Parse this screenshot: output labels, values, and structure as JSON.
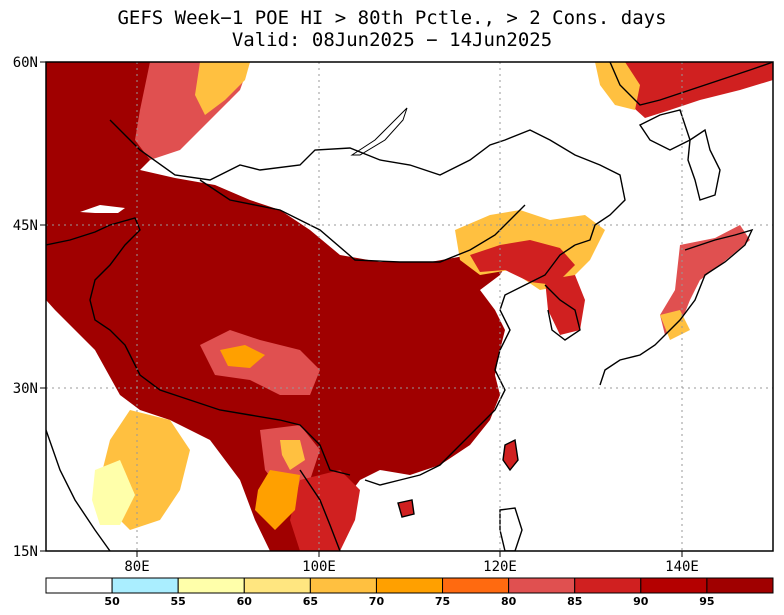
{
  "title": {
    "line1": "GEFS Week−1 POE HI > 80th Pctle., > 2 Cons. days",
    "line2": "Valid: 08Jun2025 − 14Jun2025"
  },
  "map": {
    "extent": {
      "lon": [
        70,
        150
      ],
      "lat": [
        15,
        60
      ]
    },
    "lat_labels": [
      "60N",
      "45N",
      "30N",
      "15N"
    ],
    "lon_labels": [
      "80E",
      "100E",
      "120E",
      "140E"
    ],
    "grid": true
  },
  "colorbar": {
    "labels": [
      "50",
      "55",
      "60",
      "65",
      "70",
      "75",
      "80",
      "85",
      "90",
      "95"
    ],
    "colors": [
      "#ffffff",
      "#aaeeff",
      "#ffffaa",
      "#ffe680",
      "#ffc040",
      "#ffa000",
      "#ff6a10",
      "#e05050",
      "#d02020",
      "#b40000",
      "#a00000"
    ]
  }
}
